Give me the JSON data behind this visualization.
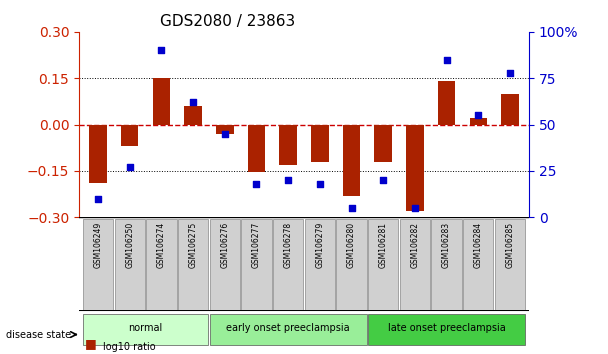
{
  "title": "GDS2080 / 23863",
  "samples": [
    "GSM106249",
    "GSM106250",
    "GSM106274",
    "GSM106275",
    "GSM106276",
    "GSM106277",
    "GSM106278",
    "GSM106279",
    "GSM106280",
    "GSM106281",
    "GSM106282",
    "GSM106283",
    "GSM106284",
    "GSM106285"
  ],
  "log10_ratio": [
    -0.19,
    -0.07,
    0.15,
    0.06,
    -0.03,
    -0.155,
    -0.13,
    -0.12,
    -0.23,
    -0.12,
    -0.28,
    0.14,
    0.02,
    0.1
  ],
  "percentile_rank": [
    10,
    27,
    90,
    62,
    45,
    18,
    20,
    18,
    5,
    20,
    5,
    85,
    55,
    78
  ],
  "groups": [
    {
      "label": "normal",
      "start": 0,
      "end": 4,
      "color": "#ccffcc"
    },
    {
      "label": "early onset preeclampsia",
      "start": 4,
      "end": 9,
      "color": "#99ee99"
    },
    {
      "label": "late onset preeclampsia",
      "start": 9,
      "end": 14,
      "color": "#44cc44"
    }
  ],
  "ylim_left": [
    -0.3,
    0.3
  ],
  "ylim_right": [
    0,
    100
  ],
  "yticks_left": [
    -0.3,
    -0.15,
    0,
    0.15,
    0.3
  ],
  "yticks_right": [
    0,
    25,
    50,
    75,
    100
  ],
  "ytick_labels_right": [
    "0",
    "25",
    "50",
    "75",
    "100%"
  ],
  "bar_color": "#aa2200",
  "dot_color": "#0000cc",
  "zero_line_color": "#cc0000",
  "grid_color": "#000000",
  "background_color": "#ffffff",
  "tick_label_bg": "#cccccc"
}
